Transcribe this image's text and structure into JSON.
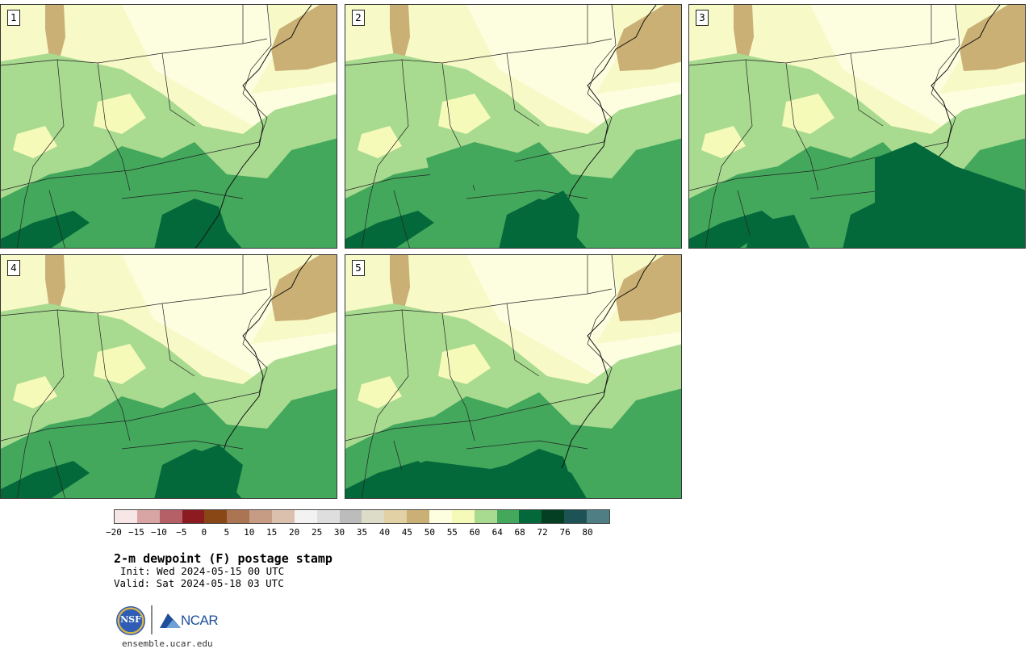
{
  "panels": [
    {
      "label": "1"
    },
    {
      "label": "2"
    },
    {
      "label": "3"
    },
    {
      "label": "4"
    },
    {
      "label": "5"
    }
  ],
  "colorbar": {
    "colors": [
      "#f6e6e6",
      "#d9a4a4",
      "#b55f66",
      "#8b1a21",
      "#8a4716",
      "#ab7553",
      "#c69c84",
      "#dcc0ae",
      "#f2f2f2",
      "#dedede",
      "#bcbcbc",
      "#dcdcc8",
      "#e1d1a5",
      "#cab074",
      "#fdfde0",
      "#f6fab9",
      "#a8da90",
      "#43a85c",
      "#03693a",
      "#043f23",
      "#1d5354",
      "#4f7f85"
    ],
    "ticks": [
      "−20",
      "−15",
      "−10",
      "−5",
      "0",
      "5",
      "10",
      "15",
      "20",
      "25",
      "30",
      "35",
      "40",
      "45",
      "50",
      "55",
      "60",
      "64",
      "68",
      "72",
      "76",
      "80"
    ]
  },
  "title": "2-m dewpoint (F) postage stamp",
  "init": "Init: Wed 2024-05-15 00 UTC",
  "valid": "Valid: Sat 2024-05-18 03 UTC",
  "logos": {
    "nsf_text": "NSF",
    "ncar_text": "NCAR"
  },
  "site": "ensemble.ucar.edu"
}
